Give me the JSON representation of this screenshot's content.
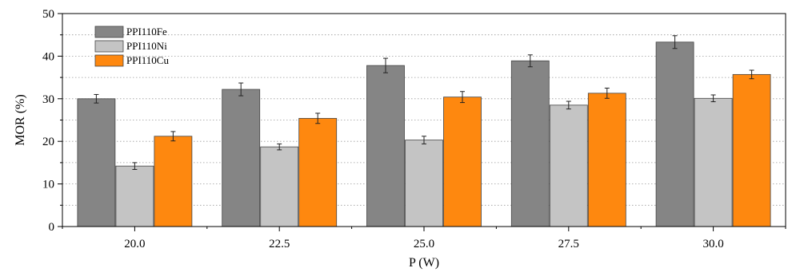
{
  "chart_data": {
    "type": "bar",
    "title": "",
    "xlabel": "P (W)",
    "ylabel": "MOR (%)",
    "ylim": [
      0,
      50
    ],
    "yticks": [
      0,
      10,
      20,
      30,
      40,
      50
    ],
    "grid": "horizontal dotted",
    "legend_position": "top-left",
    "categories": [
      "20.0",
      "22.5",
      "25.0",
      "27.5",
      "30.0"
    ],
    "series": [
      {
        "name": "PPI110Fe",
        "color": "#858585",
        "values": [
          30.0,
          32.2,
          37.8,
          38.9,
          43.3
        ],
        "errors": [
          1.0,
          1.5,
          1.7,
          1.4,
          1.5
        ]
      },
      {
        "name": "PPI110Ni",
        "color": "#c4c4c4",
        "values": [
          14.2,
          18.7,
          20.3,
          28.5,
          30.1
        ],
        "errors": [
          0.8,
          0.7,
          0.9,
          0.9,
          0.8
        ]
      },
      {
        "name": "PPI110Cu",
        "color": "#fe880f",
        "values": [
          21.2,
          25.4,
          30.4,
          31.3,
          35.7
        ],
        "errors": [
          1.1,
          1.2,
          1.3,
          1.2,
          1.0
        ]
      }
    ]
  }
}
